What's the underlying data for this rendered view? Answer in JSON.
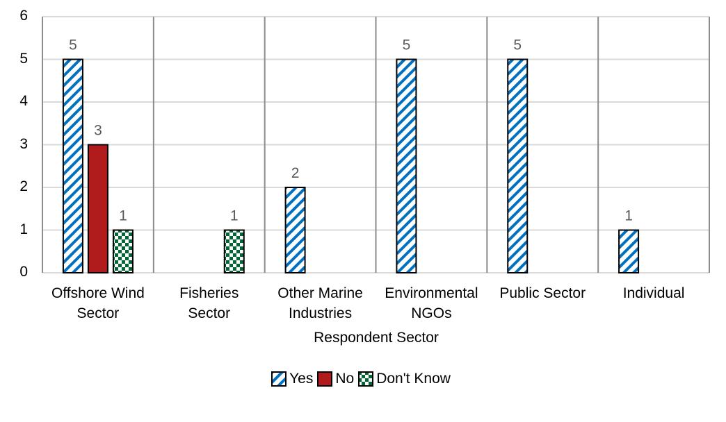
{
  "chart_data": {
    "type": "bar",
    "title": "",
    "xlabel": "Respondent Sector",
    "ylabel": "",
    "ylim": [
      0,
      6
    ],
    "yticks": [
      0,
      1,
      2,
      3,
      4,
      5,
      6
    ],
    "grid": true,
    "legend_position": "bottom",
    "categories": [
      "Offshore Wind\nSector",
      "Fisheries\nSector",
      "Other Marine\nIndustries",
      "Environmental\nNGOs",
      "Public Sector",
      "Individual"
    ],
    "series": [
      {
        "name": "Yes",
        "values": [
          5,
          0,
          2,
          5,
          5,
          1
        ],
        "color": "#0070C0",
        "pattern": "diagonal-stripes"
      },
      {
        "name": "No",
        "values": [
          3,
          0,
          0,
          0,
          0,
          0
        ],
        "color": "#B01C1C",
        "pattern": "solid"
      },
      {
        "name": "Don't Know",
        "values": [
          1,
          1,
          0,
          0,
          0,
          0
        ],
        "color": "#006633",
        "pattern": "checkerboard"
      }
    ],
    "data_labels": [
      {
        "category": "Offshore Wind\nSector",
        "series": "Yes",
        "label": "5"
      },
      {
        "category": "Offshore Wind\nSector",
        "series": "No",
        "label": "3"
      },
      {
        "category": "Offshore Wind\nSector",
        "series": "Don't Know",
        "label": "1"
      },
      {
        "category": "Fisheries\nSector",
        "series": "Don't Know",
        "label": "1"
      },
      {
        "category": "Other Marine\nIndustries",
        "series": "Yes",
        "label": "2"
      },
      {
        "category": "Environmental\nNGOs",
        "series": "Yes",
        "label": "5"
      },
      {
        "category": "Public Sector",
        "series": "Yes",
        "label": "5"
      },
      {
        "category": "Individual",
        "series": "Yes",
        "label": "1"
      }
    ]
  },
  "legend": {
    "items": [
      {
        "label": "Yes"
      },
      {
        "label": "No"
      },
      {
        "label": "Don't Know"
      }
    ]
  }
}
